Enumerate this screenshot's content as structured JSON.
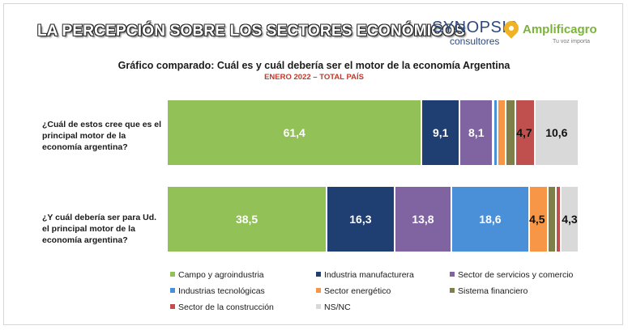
{
  "header": {
    "banner": "LA PERCEPCIÓN SOBRE LOS SECTORES ECONÓMICOS",
    "logo_synopsis": "SYNOPSIS",
    "logo_synopsis_sub": "consultores",
    "logo_amplificagro": "Amplificagro",
    "logo_amplificagro_tag": "Tu voz importa"
  },
  "chart_data": {
    "type": "bar",
    "orientation": "horizontal-stacked-100",
    "title": "Gráfico comparado: Cuál es y cuál debería ser el motor de la economía Argentina",
    "subtitle": "ENERO 2022 – TOTAL PAÍS",
    "categories": [
      "¿Cuál de estos cree que es el principal motor de la economía argentina?",
      "¿Y cuál debería ser para Ud. el principal motor de la economía argentina?"
    ],
    "series": [
      {
        "name": "Campo y agroindustria",
        "color": "#92c157",
        "values": [
          61.4,
          38.5
        ],
        "labels": [
          "61,4",
          "38,5"
        ]
      },
      {
        "name": "Industria manufacturera",
        "color": "#1f3e72",
        "values": [
          9.1,
          16.3
        ],
        "labels": [
          "9,1",
          "16,3"
        ]
      },
      {
        "name": "Sector de servicios y comercio",
        "color": "#8064a2",
        "values": [
          8.1,
          13.8
        ],
        "labels": [
          "8,1",
          "13,8"
        ]
      },
      {
        "name": "Industrias tecnológicas",
        "color": "#4a90d9",
        "values": [
          1.0,
          18.6
        ],
        "labels": [
          "",
          "18,6"
        ]
      },
      {
        "name": "Sector energético",
        "color": "#f79646",
        "values": [
          2.0,
          4.5
        ],
        "labels": [
          "",
          "4,5"
        ]
      },
      {
        "name": "Sistema financiero",
        "color": "#7f7f4a",
        "values": [
          2.3,
          2.0
        ],
        "labels": [
          "",
          ""
        ]
      },
      {
        "name": "Sector de la construcción",
        "color": "#c0504d",
        "values": [
          4.7,
          1.2
        ],
        "labels": [
          "4,7",
          ""
        ]
      },
      {
        "name": "NS/NC",
        "color": "#d9d9d9",
        "values": [
          10.6,
          4.3
        ],
        "labels": [
          "10,6",
          "4,3"
        ]
      }
    ],
    "legend_position": "bottom",
    "grid": false
  }
}
